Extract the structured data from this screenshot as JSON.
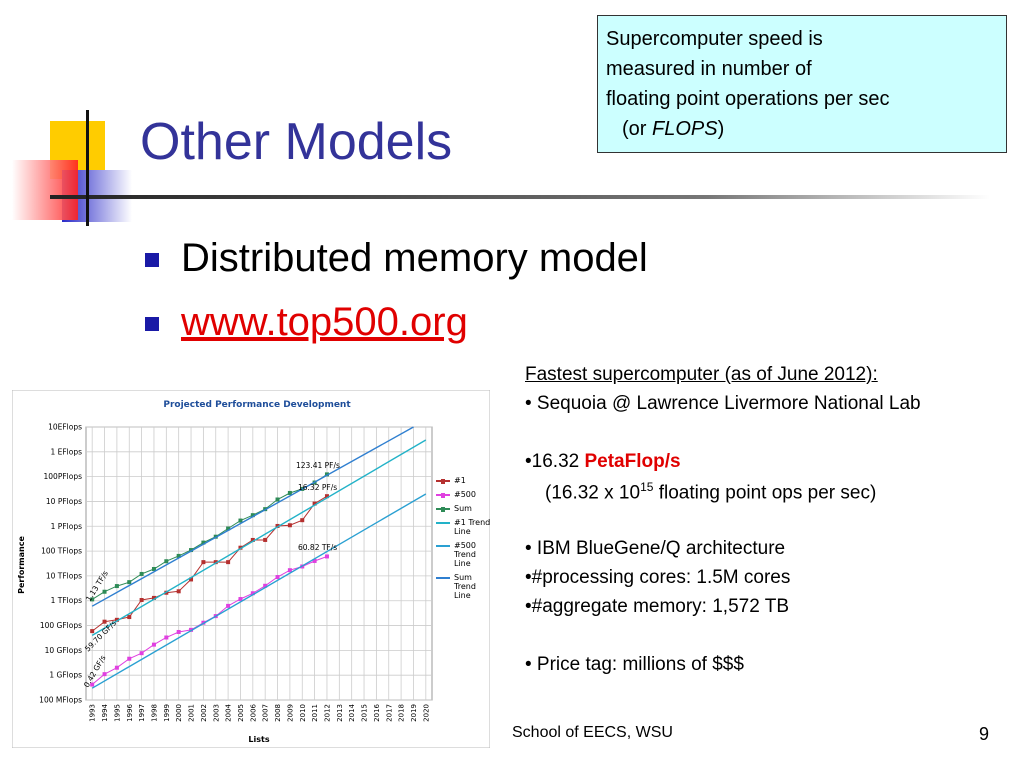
{
  "slide": {
    "title": "Other Models",
    "bullets": [
      "Distributed memory model",
      "www.top500.org"
    ],
    "footer": "School of EECS, WSU",
    "page_number": "9"
  },
  "callout": {
    "lines": [
      "Supercomputer speed is",
      "measured in number of",
      "floating point operations per sec"
    ],
    "last": {
      "before": "(or ",
      "em": "FLOPS",
      "after": ")"
    }
  },
  "details": {
    "heading": "Fastest supercomputer (as of June 2012):",
    "sequoia": "• Sequoia @ Lawrence Livermore National Lab",
    "speed": {
      "prefix": "•16.32 ",
      "unit": "PetaFlop/s"
    },
    "speed_note": {
      "before": "(16.32 x 10",
      "exp": "15",
      "after": " floating point ops per sec)"
    },
    "items": [
      "• IBM BlueGene/Q architecture",
      "•#processing cores: 1.5M cores",
      "•#aggregate memory: 1,572 TB"
    ],
    "price": "• Price tag: millions of $$$"
  },
  "chart_data": {
    "type": "line",
    "title": "Projected Performance Development",
    "x_label": "Lists",
    "y_label": "Performance",
    "yscale": "log",
    "grid": true,
    "xlim": [
      1992.5,
      2020.5
    ],
    "xticks": [
      1993,
      1994,
      1995,
      1996,
      1997,
      1998,
      1999,
      2000,
      2001,
      2002,
      2003,
      2004,
      2005,
      2006,
      2007,
      2008,
      2009,
      2010,
      2011,
      2012,
      2013,
      2014,
      2015,
      2016,
      2017,
      2018,
      2019,
      2020
    ],
    "ylim": [
      100000000,
      10000000000000000000
    ],
    "yticks": [
      {
        "value": 100000000,
        "label": "100 MFlops"
      },
      {
        "value": 1000000000,
        "label": "1 GFlops"
      },
      {
        "value": 10000000000,
        "label": "10 GFlops"
      },
      {
        "value": 100000000000,
        "label": "100 GFlops"
      },
      {
        "value": 1000000000000,
        "label": "1 TFlops"
      },
      {
        "value": 10000000000000,
        "label": "10 TFlops"
      },
      {
        "value": 100000000000000,
        "label": "100 TFlops"
      },
      {
        "value": 1000000000000000,
        "label": "1 PFlops"
      },
      {
        "value": 10000000000000000,
        "label": "10 PFlops"
      },
      {
        "value": 100000000000000000,
        "label": "100PFlops"
      },
      {
        "value": 1000000000000000000,
        "label": "1 EFlops"
      },
      {
        "value": 10000000000000000000,
        "label": "10EFlops"
      }
    ],
    "x": [
      1993,
      1994,
      1995,
      1996,
      1997,
      1998,
      1999,
      2000,
      2001,
      2002,
      2003,
      2004,
      2005,
      2006,
      2007,
      2008,
      2009,
      2010,
      2011,
      2012
    ],
    "series": [
      {
        "name": "#1",
        "color": "#b5302f",
        "marker": "square",
        "values": [
          59700000000,
          143000000000,
          170000000000,
          220000000000,
          1070000000000,
          1300000000000,
          2100000000000,
          2400000000000,
          7200000000000,
          35900000000000,
          35900000000000,
          35900000000000,
          137000000000000,
          281000000000000,
          281000000000000,
          1030000000000000,
          1100000000000000,
          1760000000000000,
          8200000000000000,
          16320000000000000
        ]
      },
      {
        "name": "#500",
        "color": "#e040e0",
        "marker": "square",
        "values": [
          420000000,
          1100000000,
          2000000000,
          4600000000,
          7700000000,
          17000000000,
          33000000000,
          55000000000,
          67000000000,
          130000000000,
          240000000000,
          620000000000,
          1170000000000,
          2000000000000,
          4000000000000,
          9000000000000,
          17000000000000,
          24000000000000,
          40000000000000,
          60820000000000
        ]
      },
      {
        "name": "Sum",
        "color": "#2e8b57",
        "marker": "square",
        "values": [
          1130000000000,
          2300000000000,
          3900000000000,
          5600000000000,
          12000000000000,
          19000000000000,
          39000000000000,
          64000000000000,
          110000000000000,
          220000000000000,
          380000000000000,
          810000000000000,
          1700000000000000,
          2800000000000000,
          4900000000000000,
          12000000000000000,
          22000000000000000,
          32000000000000000,
          58000000000000000,
          123410000000000000
        ]
      },
      {
        "name": "#1 Trend Line",
        "color": "#22b2c8",
        "x": [
          1993,
          2020
        ],
        "values": [
          40000000000,
          3000000000000000000
        ]
      },
      {
        "name": "#500 Trend Line",
        "color": "#2aa0d2",
        "x": [
          1993,
          2020
        ],
        "values": [
          300000000,
          20000000000000000
        ]
      },
      {
        "name": "Sum Trend Line",
        "color": "#2f7fd0",
        "x": [
          1993,
          2019
        ],
        "values": [
          600000000000,
          10000000000000000000
        ]
      }
    ],
    "annotations": [
      "123.41 PF/s",
      "16.32 PF/s",
      "60.82 TF/s",
      "1.13 TF/s",
      "59.70 GF/s",
      "0.42 GF/s"
    ]
  }
}
